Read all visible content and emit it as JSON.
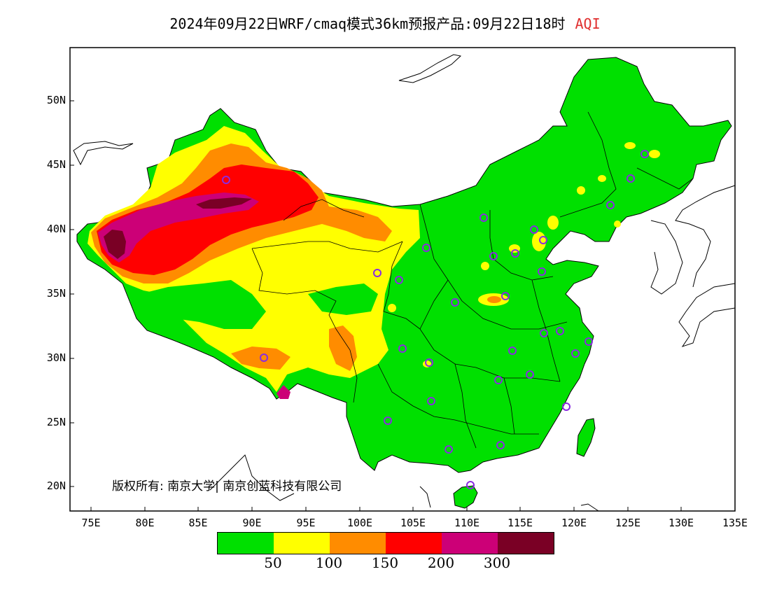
{
  "title": "2024年09月22日WRF/cmaq模式36km预报产品:09月22日18时",
  "title_variable": "AQI",
  "copyright": "版权所有: 南京大学| 南京创蓝科技有限公司",
  "lat_labels": [
    "50N",
    "45N",
    "40N",
    "35N",
    "30N",
    "25N",
    "20N"
  ],
  "lon_labels": [
    "75E",
    "80E",
    "85E",
    "90E",
    "95E",
    "100E",
    "105E",
    "110E",
    "115E",
    "120E",
    "125E",
    "130E",
    "135E"
  ],
  "colorbar": {
    "colors": [
      "#00e000",
      "#ffff00",
      "#ff8c00",
      "#ff0000",
      "#cc0077",
      "#7a0025"
    ],
    "labels": [
      "50",
      "100",
      "150",
      "200",
      "300"
    ]
  },
  "colors": {
    "land": "#00e000",
    "border": "#000000",
    "station": "#8a2be2",
    "ocean": "#ffffff"
  }
}
